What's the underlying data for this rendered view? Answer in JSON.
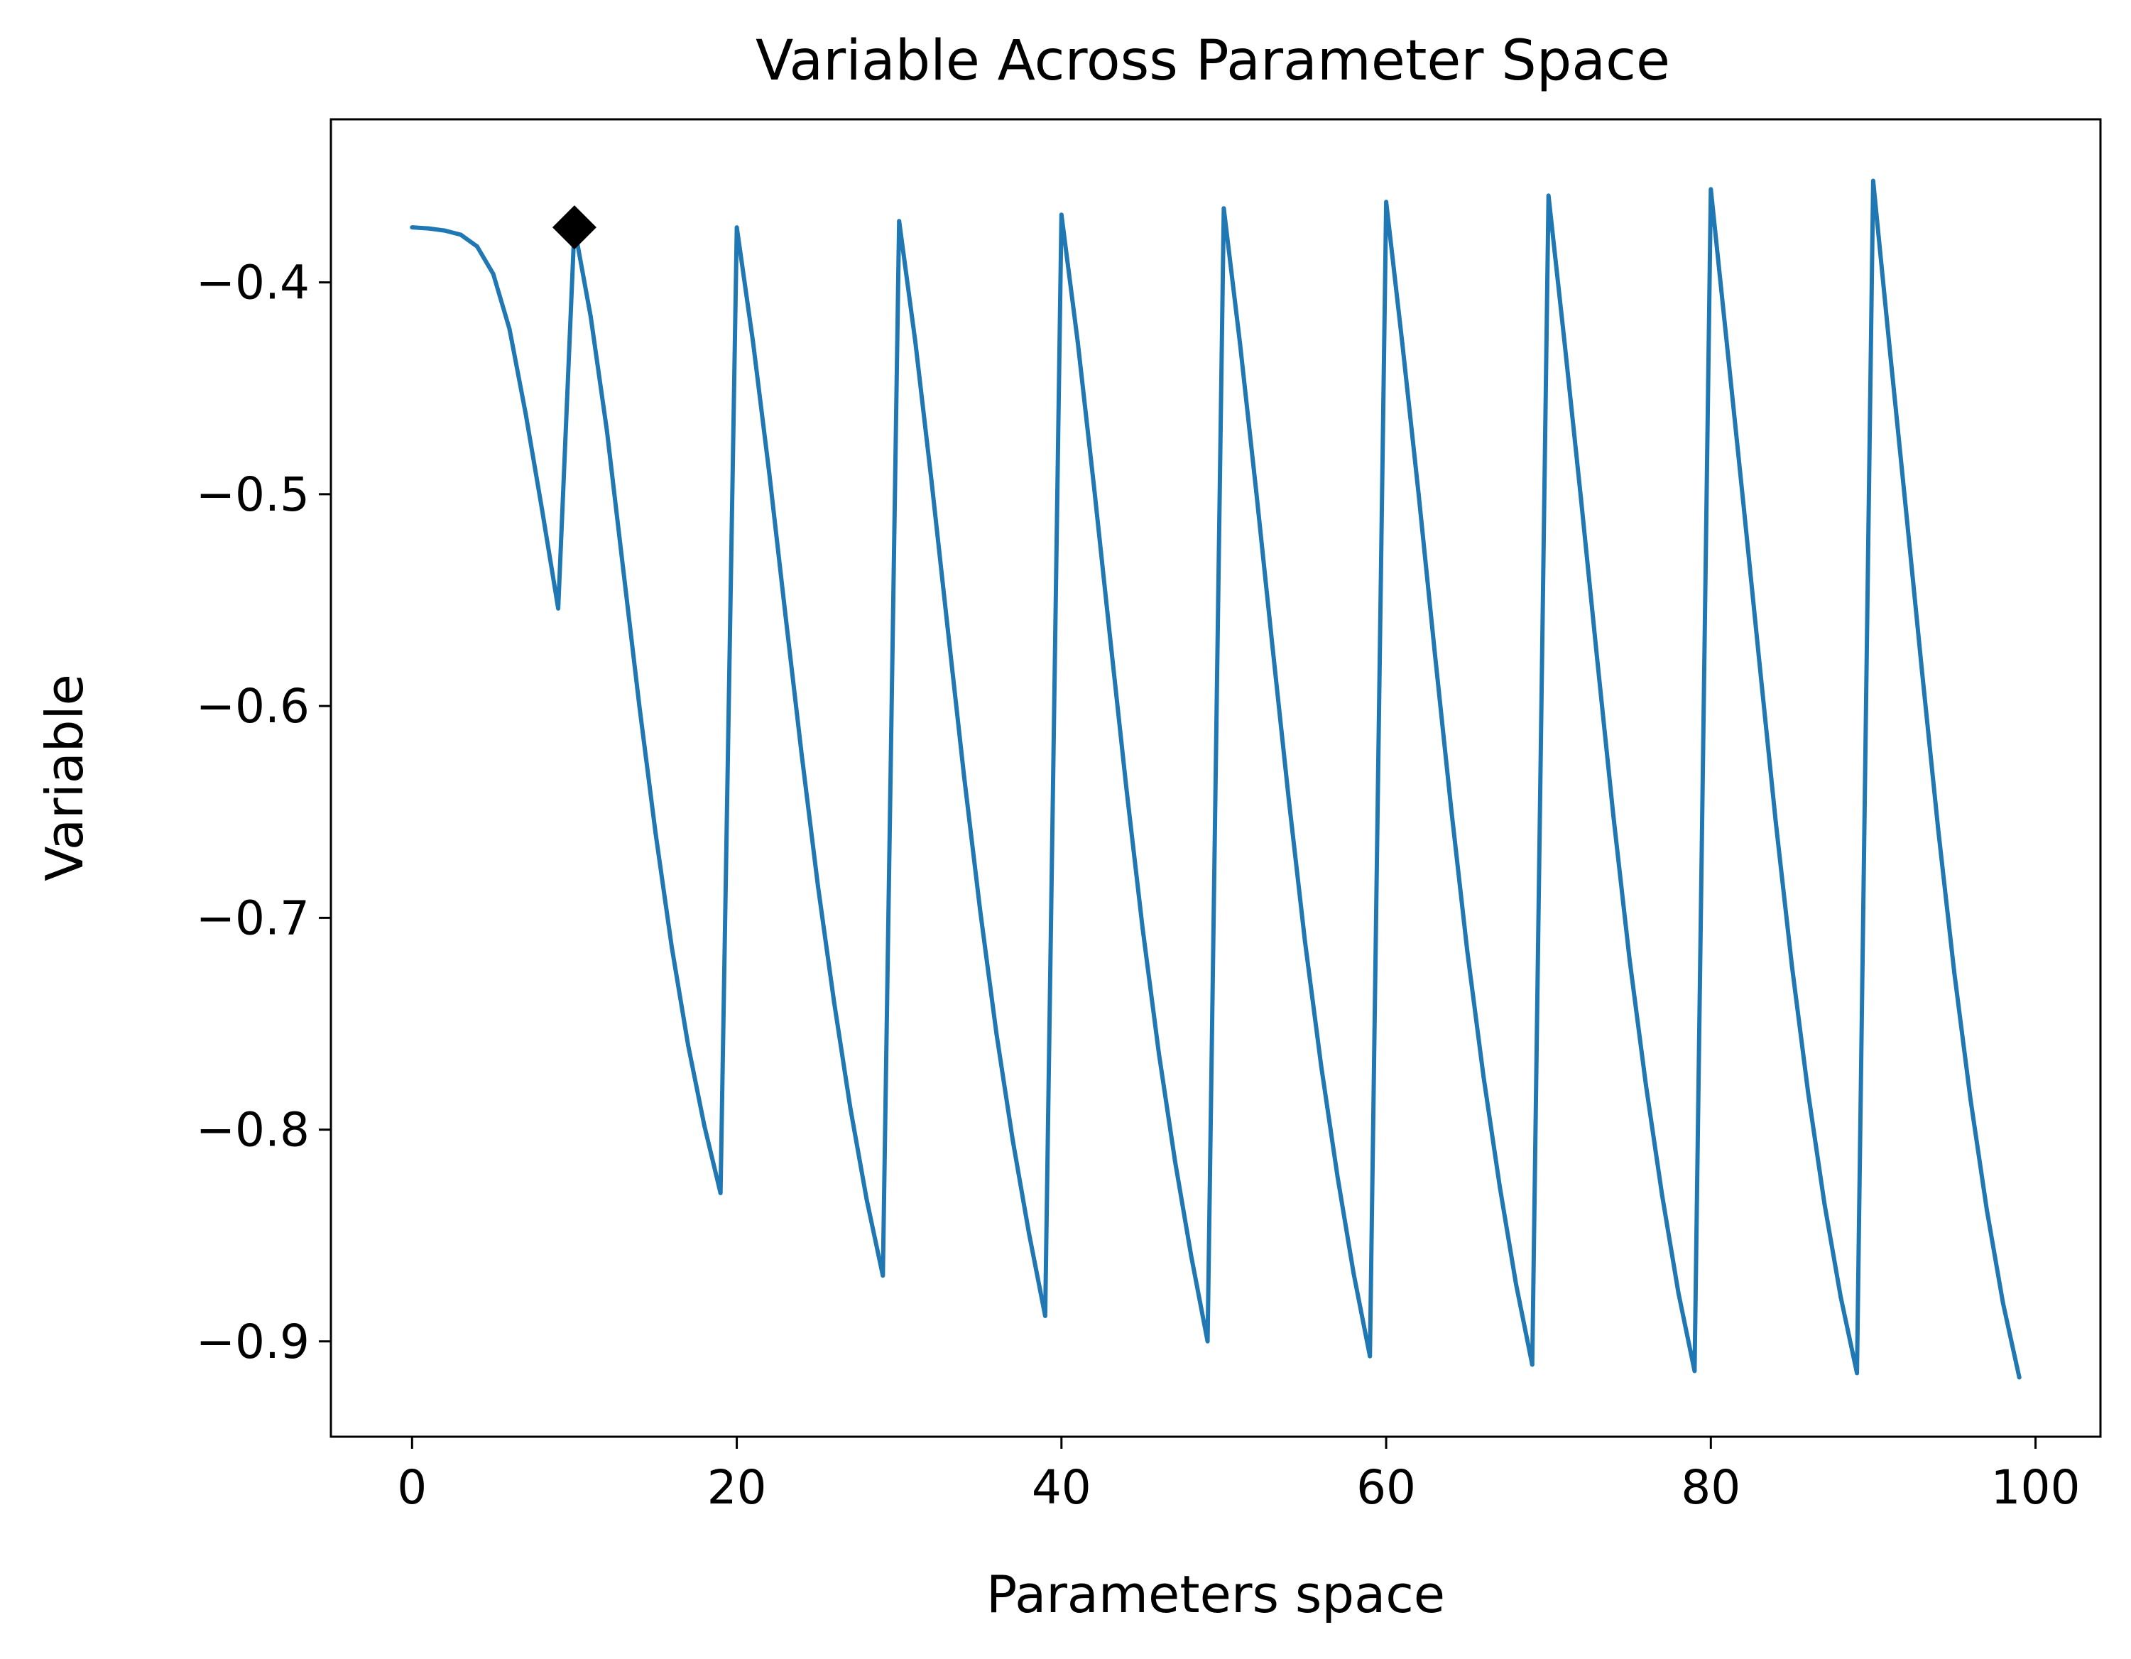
{
  "chart_data": {
    "type": "line",
    "title": "Variable Across Parameter Space",
    "xlabel": "Parameters space",
    "ylabel": "Variable",
    "xlim": [
      -5,
      104
    ],
    "ylim": [
      -0.945,
      -0.323
    ],
    "xticks": [
      0,
      20,
      40,
      60,
      80,
      100
    ],
    "yticks": [
      -0.4,
      -0.5,
      -0.6,
      -0.7,
      -0.8,
      -0.9
    ],
    "grid": false,
    "legend": "none",
    "series": [
      {
        "color": "#1f77b4",
        "x": [
          0,
          1,
          2,
          3,
          4,
          5,
          6,
          7,
          8,
          9,
          10,
          11,
          12,
          13,
          14,
          15,
          16,
          17,
          18,
          19,
          20,
          21,
          22,
          23,
          24,
          25,
          26,
          27,
          28,
          29,
          30,
          31,
          32,
          33,
          34,
          35,
          36,
          37,
          38,
          39,
          40,
          41,
          42,
          43,
          44,
          45,
          46,
          47,
          48,
          49,
          50,
          51,
          52,
          53,
          54,
          55,
          56,
          57,
          58,
          59,
          60,
          61,
          62,
          63,
          64,
          65,
          66,
          67,
          68,
          69,
          70,
          71,
          72,
          73,
          74,
          75,
          76,
          77,
          78,
          79,
          80,
          81,
          82,
          83,
          84,
          85,
          86,
          87,
          88,
          89,
          90,
          91,
          92,
          93,
          94,
          95,
          96,
          97,
          98,
          99
        ],
        "values": [
          -0.374,
          -0.3745,
          -0.3755,
          -0.3775,
          -0.383,
          -0.396,
          -0.422,
          -0.462,
          -0.507,
          -0.554,
          -0.374,
          -0.416,
          -0.47,
          -0.535,
          -0.6,
          -0.66,
          -0.714,
          -0.76,
          -0.798,
          -0.83,
          -0.374,
          -0.428,
          -0.49,
          -0.557,
          -0.623,
          -0.685,
          -0.74,
          -0.79,
          -0.833,
          -0.869,
          -0.371,
          -0.428,
          -0.494,
          -0.564,
          -0.633,
          -0.697,
          -0.755,
          -0.805,
          -0.849,
          -0.888,
          -0.368,
          -0.428,
          -0.496,
          -0.568,
          -0.639,
          -0.705,
          -0.764,
          -0.815,
          -0.86,
          -0.9,
          -0.365,
          -0.429,
          -0.499,
          -0.572,
          -0.644,
          -0.711,
          -0.77,
          -0.822,
          -0.868,
          -0.907,
          -0.362,
          -0.429,
          -0.5,
          -0.575,
          -0.648,
          -0.716,
          -0.775,
          -0.827,
          -0.873,
          -0.911,
          -0.359,
          -0.429,
          -0.502,
          -0.578,
          -0.652,
          -0.72,
          -0.779,
          -0.831,
          -0.877,
          -0.914,
          -0.356,
          -0.43,
          -0.504,
          -0.58,
          -0.655,
          -0.723,
          -0.783,
          -0.835,
          -0.879,
          -0.915,
          -0.352,
          -0.43,
          -0.506,
          -0.583,
          -0.658,
          -0.726,
          -0.786,
          -0.838,
          -0.882,
          -0.917
        ]
      }
    ],
    "marker": {
      "x": 10,
      "y": -0.374,
      "shape": "diamond",
      "color": "#000000"
    }
  }
}
